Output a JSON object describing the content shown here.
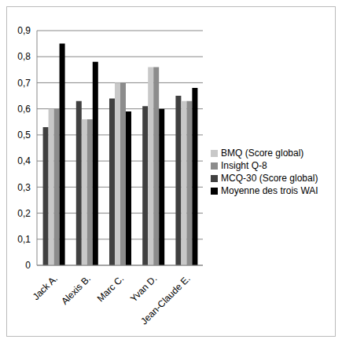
{
  "chart_data": {
    "type": "bar",
    "categories": [
      "Jack A.",
      "Alexis B.",
      "Marc C.",
      "Yvan D.",
      "Jean-Claude E."
    ],
    "series": [
      {
        "name": "MCQ-30 (Score global)",
        "color": "#404040",
        "values": [
          0.53,
          0.63,
          0.64,
          0.61,
          0.65
        ]
      },
      {
        "name": "BMQ (Score global)",
        "color": "#c8c8c8",
        "values": [
          0.6,
          0.56,
          0.7,
          0.76,
          0.63
        ]
      },
      {
        "name": "Insight Q-8",
        "color": "#8c8c8c",
        "values": [
          0.6,
          0.56,
          0.7,
          0.76,
          0.63
        ]
      },
      {
        "name": "Moyenne des trois WAI",
        "color": "#000000",
        "values": [
          0.85,
          0.78,
          0.59,
          0.6,
          0.68
        ]
      }
    ],
    "ylim": [
      0,
      0.9
    ],
    "yticks": [
      0,
      {
        "value": 0.1,
        "label": "0,1"
      },
      {
        "value": 0.2,
        "label": "0,2"
      },
      {
        "value": 0.3,
        "label": "0,3"
      },
      {
        "value": 0.4,
        "label": "0,4"
      },
      {
        "value": 0.5,
        "label": "0,5"
      },
      {
        "value": 0.6,
        "label": "0,6"
      },
      {
        "value": 0.7,
        "label": "0,7"
      },
      {
        "value": 0.8,
        "label": "0,8"
      },
      {
        "value": 0.9,
        "label": "0,9"
      }
    ],
    "grid": true,
    "legend": "right"
  }
}
